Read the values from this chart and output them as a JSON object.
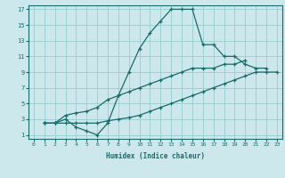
{
  "xlabel": "Humidex (Indice chaleur)",
  "bg_color": "#cce8ec",
  "grid_color": "#99cccc",
  "line_color": "#1a6b6b",
  "xlim": [
    -0.5,
    23.5
  ],
  "ylim": [
    0.5,
    17.5
  ],
  "xticks": [
    0,
    1,
    2,
    3,
    4,
    5,
    6,
    7,
    8,
    9,
    10,
    11,
    12,
    13,
    14,
    15,
    16,
    17,
    18,
    19,
    20,
    21,
    22,
    23
  ],
  "yticks": [
    1,
    3,
    5,
    7,
    9,
    11,
    13,
    15,
    17
  ],
  "series": [
    {
      "x": [
        1,
        2,
        3,
        4,
        5,
        6,
        7,
        8,
        9,
        10,
        11,
        12,
        13,
        14,
        15,
        16,
        17,
        18,
        19,
        20,
        21,
        22
      ],
      "y": [
        2.5,
        2.5,
        3.0,
        2.0,
        1.5,
        1.0,
        2.5,
        6.0,
        9.0,
        12.0,
        14.0,
        15.5,
        17.0,
        17.0,
        17.0,
        12.5,
        12.5,
        11.0,
        11.0,
        10.0,
        9.5,
        9.5
      ]
    },
    {
      "x": [
        1,
        2,
        3,
        4,
        5,
        6,
        7,
        8,
        9,
        10,
        11,
        12,
        13,
        14,
        15,
        16,
        17,
        18,
        19,
        20,
        21,
        22,
        23
      ],
      "y": [
        2.5,
        2.5,
        2.5,
        2.5,
        2.5,
        2.5,
        2.8,
        3.0,
        3.2,
        3.5,
        4.0,
        4.5,
        5.0,
        5.5,
        6.0,
        6.5,
        7.0,
        7.5,
        8.0,
        8.5,
        9.0,
        9.0,
        9.0
      ]
    },
    {
      "x": [
        1,
        2,
        3,
        4,
        5,
        6,
        7,
        8,
        9,
        10,
        11,
        12,
        13,
        14,
        15,
        16,
        17,
        18,
        19,
        20
      ],
      "y": [
        2.5,
        2.5,
        3.5,
        3.8,
        4.0,
        4.5,
        5.5,
        6.0,
        6.5,
        7.0,
        7.5,
        8.0,
        8.5,
        9.0,
        9.5,
        9.5,
        9.5,
        10.0,
        10.0,
        10.5
      ]
    }
  ]
}
